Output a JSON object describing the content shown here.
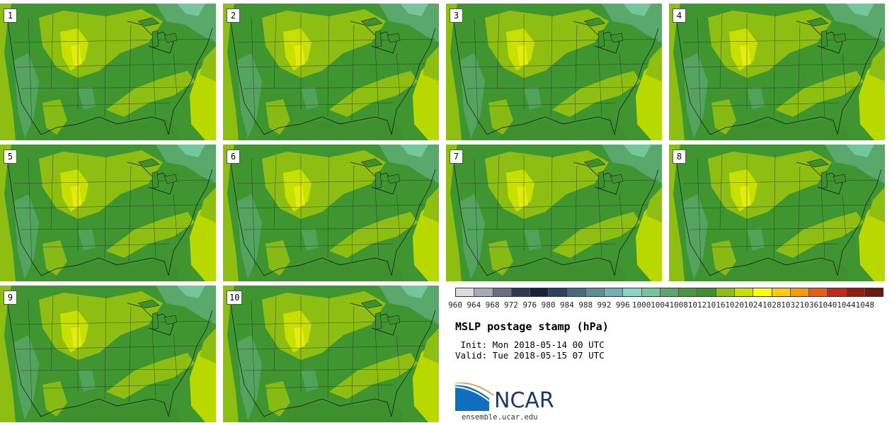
{
  "figure": {
    "title": "MSLP postage stamp (hPa)",
    "init_label": " Init: Mon 2018-05-14 00 UTC",
    "valid_label": "Valid: Tue 2018-05-15 07 UTC"
  },
  "stamps": [
    "1",
    "2",
    "3",
    "4",
    "5",
    "6",
    "7",
    "8",
    "9",
    "10"
  ],
  "colorbar": {
    "ticks": [
      "960",
      "964",
      "968",
      "972",
      "976",
      "980",
      "984",
      "988",
      "992",
      "996",
      "1000",
      "1004",
      "1008",
      "1012",
      "1016",
      "1020",
      "1024",
      "1028",
      "1032",
      "1036",
      "1040",
      "1044",
      "1048"
    ],
    "colors": [
      "#dcdde3",
      "#a7a8b8",
      "#6a6f88",
      "#2e3a58",
      "#15213d",
      "#2c4161",
      "#466a80",
      "#5f8e9a",
      "#74afb1",
      "#86d6c8",
      "#6ec9a0",
      "#5aa86b",
      "#469a3e",
      "#3e8f2e",
      "#8fbe12",
      "#c7e000",
      "#ffff00",
      "#ffcc00",
      "#ff9900",
      "#f05a10",
      "#c82810",
      "#951c10",
      "#6b1810"
    ]
  },
  "logo": {
    "name": "NCAR",
    "url": "ensemble.ucar.edu"
  }
}
